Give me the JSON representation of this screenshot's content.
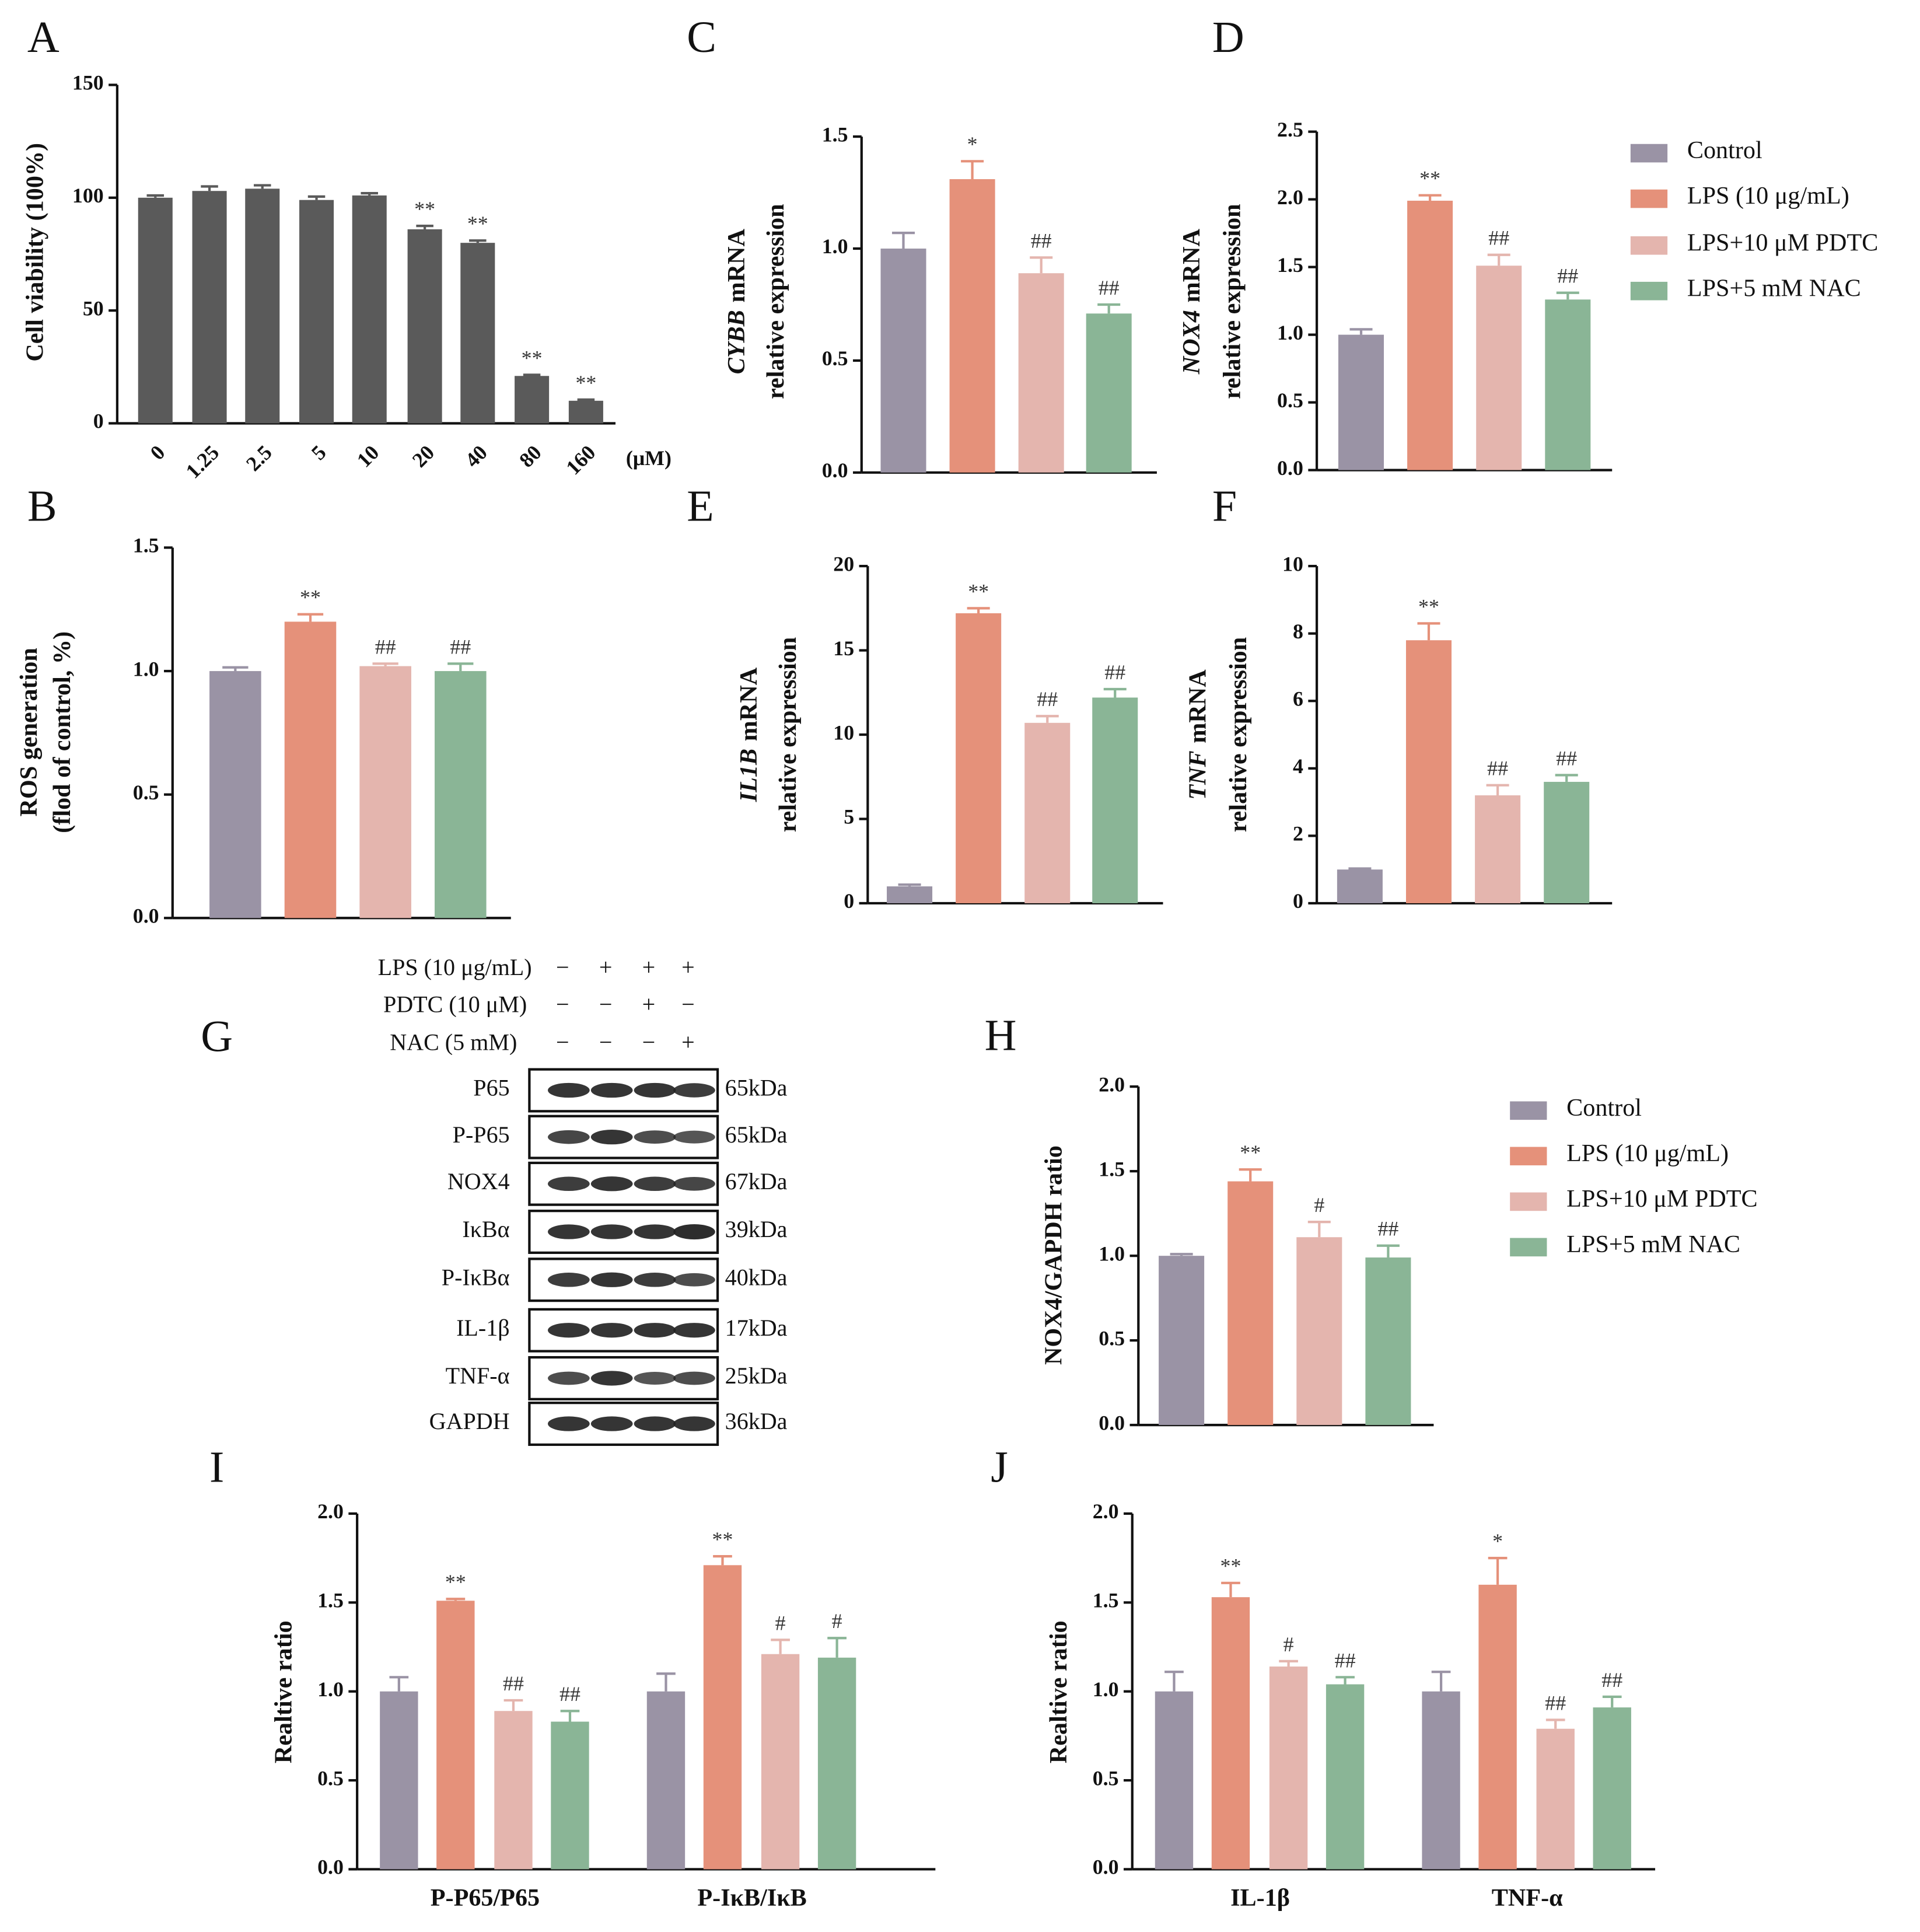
{
  "chart_data": [
    {
      "panel": "A",
      "type": "bar",
      "ylabel": [
        "Cell viability (100%)"
      ],
      "xunit": "(μM)",
      "categories": [
        "0",
        "1.25",
        "2.5",
        "5",
        "10",
        "20",
        "40",
        "80",
        "160"
      ],
      "values": [
        100,
        103,
        104,
        99,
        101,
        86,
        80,
        21,
        10
      ],
      "errors": [
        1,
        2,
        1.5,
        1.5,
        1,
        1.5,
        1,
        0.5,
        0.5
      ],
      "annotations": [
        null,
        null,
        null,
        null,
        null,
        "**",
        "**",
        "**",
        "**"
      ],
      "color": "#5a5a5a",
      "ylim": [
        0,
        150
      ],
      "yticks": [
        0,
        50,
        100,
        150
      ]
    },
    {
      "panel": "B",
      "type": "bar",
      "ylabel": [
        "ROS generation",
        "(flod of control, %)"
      ],
      "values": [
        1.0,
        1.2,
        1.02,
        1.0
      ],
      "errors": [
        0.015,
        0.03,
        0.01,
        0.03
      ],
      "annotations": [
        null,
        "**",
        "##",
        "##"
      ],
      "colors": [
        "#9a93a5",
        "#e5917a",
        "#e4b5ae",
        "#8ab596"
      ],
      "ylim": [
        0,
        1.5
      ],
      "yticks": [
        {
          "value": 0,
          "label": "0.0"
        },
        {
          "value": 0.5,
          "label": "0.5"
        },
        {
          "value": 1,
          "label": "1.0"
        },
        {
          "value": 1.5,
          "label": "1.5"
        }
      ]
    },
    {
      "panel": "C",
      "type": "bar",
      "ylabel_gene": "CYBB",
      "ylabel": [
        "mRNA",
        "relative expression"
      ],
      "values": [
        1.0,
        1.31,
        0.89,
        0.71
      ],
      "errors": [
        0.07,
        0.08,
        0.07,
        0.04
      ],
      "annotations": [
        null,
        "*",
        "##",
        "##"
      ],
      "colors": [
        "#9a93a5",
        "#e5917a",
        "#e4b5ae",
        "#8ab596"
      ],
      "ylim": [
        0,
        1.5
      ],
      "yticks": [
        {
          "value": 0,
          "label": "0.0"
        },
        {
          "value": 0.5,
          "label": "0.5"
        },
        {
          "value": 1,
          "label": "1.0"
        },
        {
          "value": 1.5,
          "label": "1.5"
        }
      ]
    },
    {
      "panel": "D",
      "type": "bar",
      "ylabel_gene": "NOX4",
      "ylabel": [
        "mRNA",
        "relative expression"
      ],
      "values": [
        1.0,
        1.99,
        1.51,
        1.26
      ],
      "errors": [
        0.04,
        0.04,
        0.08,
        0.05
      ],
      "annotations": [
        null,
        "**",
        "##",
        "##"
      ],
      "colors": [
        "#9a93a5",
        "#e5917a",
        "#e4b5ae",
        "#8ab596"
      ],
      "legend": [
        "Control",
        "LPS (10 μg/mL)",
        "LPS+10 μM PDTC",
        "LPS+5 mM NAC"
      ],
      "ylim": [
        0,
        2.5
      ],
      "yticks": [
        {
          "value": 0,
          "label": "0.0"
        },
        {
          "value": 0.5,
          "label": "0.5"
        },
        {
          "value": 1,
          "label": "1.0"
        },
        {
          "value": 1.5,
          "label": "1.5"
        },
        {
          "value": 2,
          "label": "2.0"
        },
        {
          "value": 2.5,
          "label": "2.5"
        }
      ]
    },
    {
      "panel": "E",
      "type": "bar",
      "ylabel_gene": "IL1B",
      "ylabel": [
        "mRNA",
        "relative expression"
      ],
      "values": [
        1.0,
        17.2,
        10.7,
        12.2
      ],
      "errors": [
        0.1,
        0.3,
        0.4,
        0.5
      ],
      "annotations": [
        null,
        "**",
        "##",
        "##"
      ],
      "colors": [
        "#9a93a5",
        "#e5917a",
        "#e4b5ae",
        "#8ab596"
      ],
      "ylim": [
        0,
        20
      ],
      "yticks": [
        0,
        5,
        10,
        15,
        20
      ]
    },
    {
      "panel": "F",
      "type": "bar",
      "ylabel_gene": "TNF",
      "ylabel": [
        "mRNA",
        "relative expression"
      ],
      "values": [
        1.0,
        7.8,
        3.2,
        3.6
      ],
      "errors": [
        0.03,
        0.5,
        0.3,
        0.2
      ],
      "annotations": [
        null,
        "**",
        "##",
        "##"
      ],
      "colors": [
        "#9a93a5",
        "#e5917a",
        "#e4b5ae",
        "#8ab596"
      ],
      "ylim": [
        0,
        10
      ],
      "yticks": [
        0,
        2,
        4,
        6,
        8,
        10
      ]
    },
    {
      "panel": "H",
      "type": "bar",
      "ylabel": [
        "NOX4/GAPDH ratio"
      ],
      "values": [
        1.0,
        1.44,
        1.11,
        0.99
      ],
      "errors": [
        0.01,
        0.07,
        0.09,
        0.07
      ],
      "annotations": [
        null,
        "**",
        "#",
        "##"
      ],
      "colors": [
        "#9a93a5",
        "#e5917a",
        "#e4b5ae",
        "#8ab596"
      ],
      "legend": [
        "Control",
        "LPS (10 μg/mL)",
        "LPS+10 μM PDTC",
        "LPS+5 mM NAC"
      ],
      "ylim": [
        0,
        2
      ],
      "yticks": [
        {
          "value": 0,
          "label": "0.0"
        },
        {
          "value": 0.5,
          "label": "0.5"
        },
        {
          "value": 1,
          "label": "1.0"
        },
        {
          "value": 1.5,
          "label": "1.5"
        },
        {
          "value": 2,
          "label": "2.0"
        }
      ]
    },
    {
      "panel": "I",
      "type": "grouped_bar",
      "ylabel": [
        "Realtive ratio"
      ],
      "categories": [
        "P-P65/P65",
        "P-IκB/IκB"
      ],
      "series": [
        {
          "color": "#9a93a5",
          "values": [
            1.0,
            1.0
          ],
          "errors": [
            0.08,
            0.1
          ],
          "annotations": [
            null,
            null
          ]
        },
        {
          "color": "#e5917a",
          "values": [
            1.51,
            1.71
          ],
          "errors": [
            0.01,
            0.05
          ],
          "annotations": [
            "**",
            "**"
          ]
        },
        {
          "color": "#e4b5ae",
          "values": [
            0.89,
            1.21
          ],
          "errors": [
            0.06,
            0.08
          ],
          "annotations": [
            "##",
            "#"
          ]
        },
        {
          "color": "#8ab596",
          "values": [
            0.83,
            1.19
          ],
          "errors": [
            0.06,
            0.11
          ],
          "annotations": [
            "##",
            "#"
          ]
        }
      ],
      "ylim": [
        0,
        2
      ],
      "yticks": [
        {
          "value": 0,
          "label": "0.0"
        },
        {
          "value": 0.5,
          "label": "0.5"
        },
        {
          "value": 1,
          "label": "1.0"
        },
        {
          "value": 1.5,
          "label": "1.5"
        },
        {
          "value": 2,
          "label": "2.0"
        }
      ]
    },
    {
      "panel": "J",
      "type": "grouped_bar",
      "ylabel": [
        "Realtive ratio"
      ],
      "categories": [
        "IL-1β",
        "TNF-α"
      ],
      "series": [
        {
          "color": "#9a93a5",
          "values": [
            1.0,
            1.0
          ],
          "errors": [
            0.11,
            0.11
          ],
          "annotations": [
            null,
            null
          ]
        },
        {
          "color": "#e5917a",
          "values": [
            1.53,
            1.6
          ],
          "errors": [
            0.08,
            0.15
          ],
          "annotations": [
            "**",
            "*"
          ]
        },
        {
          "color": "#e4b5ae",
          "values": [
            1.14,
            0.79
          ],
          "errors": [
            0.03,
            0.05
          ],
          "annotations": [
            "#",
            "##"
          ]
        },
        {
          "color": "#8ab596",
          "values": [
            1.04,
            0.91
          ],
          "errors": [
            0.04,
            0.06
          ],
          "annotations": [
            "##",
            "##"
          ]
        }
      ],
      "ylim": [
        0,
        2
      ],
      "yticks": [
        {
          "value": 0,
          "label": "0.0"
        },
        {
          "value": 0.5,
          "label": "0.5"
        },
        {
          "value": 1,
          "label": "1.0"
        },
        {
          "value": 1.5,
          "label": "1.5"
        },
        {
          "value": 2,
          "label": "2.0"
        }
      ]
    }
  ],
  "blot": {
    "panel": "G",
    "treatments": [
      {
        "label": "LPS (10 μg/mL)",
        "signs": [
          "−",
          "+",
          "+",
          "+"
        ]
      },
      {
        "label": "PDTC (10 μM)",
        "signs": [
          "−",
          "−",
          "+",
          "−"
        ]
      },
      {
        "label": "NAC (5 mM)",
        "signs": [
          "−",
          "−",
          "−",
          "+"
        ]
      }
    ],
    "proteins": [
      {
        "label": "P65",
        "size": "65kDa"
      },
      {
        "label": "P-P65",
        "size": "65kDa"
      },
      {
        "label": "NOX4",
        "size": "67kDa"
      },
      {
        "label": "IκBα",
        "size": "39kDa"
      },
      {
        "label": "P-IκBα",
        "size": "40kDa"
      },
      {
        "label": "IL-1β",
        "size": "17kDa"
      },
      {
        "label": "TNF-α",
        "size": "25kDa"
      },
      {
        "label": "GAPDH",
        "size": "36kDa"
      }
    ]
  }
}
